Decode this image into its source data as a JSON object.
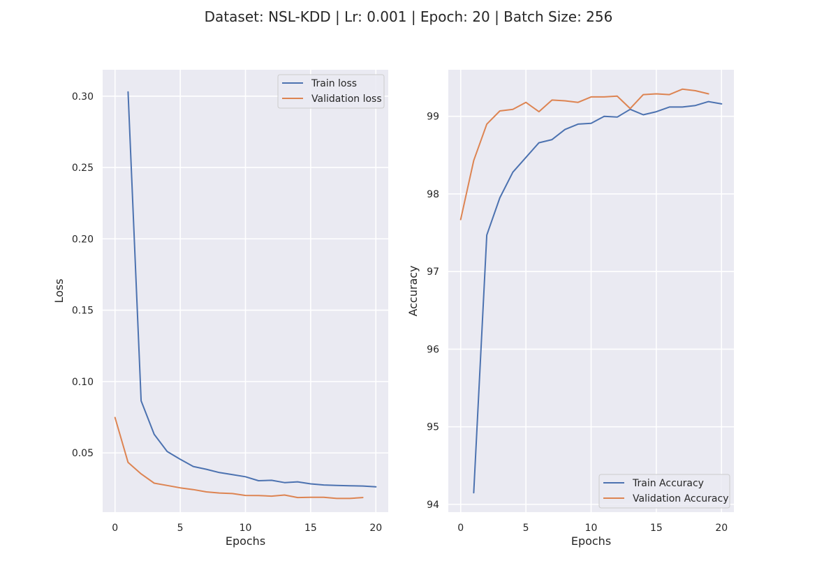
{
  "figure_title": "Dataset: NSL-KDD | Lr: 0.001 | Epoch: 20 | Batch Size: 256",
  "colors": {
    "background": "#eaeaf2",
    "grid": "#ffffff",
    "series_1": "#4c72b0",
    "series_2": "#dd8452"
  },
  "chart_data": [
    {
      "type": "line",
      "title": "",
      "xlabel": "Epochs",
      "ylabel": "Loss",
      "xlim": [
        -0.95,
        20.95
      ],
      "ylim": [
        0.0085,
        0.3185
      ],
      "xticks": [
        0,
        5,
        10,
        15,
        20
      ],
      "yticks": [
        0.05,
        0.1,
        0.15,
        0.2,
        0.25,
        0.3
      ],
      "ytick_labels": [
        "0.05",
        "0.10",
        "0.15",
        "0.20",
        "0.25",
        "0.30"
      ],
      "grid": true,
      "legend_position": "upper right",
      "series": [
        {
          "name": "Train loss",
          "x": [
            1,
            2,
            3,
            4,
            5,
            6,
            7,
            8,
            9,
            10,
            11,
            12,
            13,
            14,
            15,
            16,
            17,
            18,
            19,
            20
          ],
          "values": [
            0.303,
            0.0865,
            0.063,
            0.051,
            0.0455,
            0.0405,
            0.0385,
            0.0362,
            0.0348,
            0.0333,
            0.0305,
            0.0308,
            0.0292,
            0.0297,
            0.0283,
            0.0275,
            0.0272,
            0.027,
            0.0268,
            0.0262
          ]
        },
        {
          "name": "Validation loss",
          "x": [
            0,
            1,
            2,
            3,
            4,
            5,
            6,
            7,
            8,
            9,
            10,
            11,
            12,
            13,
            14,
            15,
            16,
            17,
            18,
            19
          ],
          "values": [
            0.0748,
            0.0433,
            0.0353,
            0.0288,
            0.0272,
            0.0255,
            0.0243,
            0.0227,
            0.0219,
            0.0215,
            0.0202,
            0.0201,
            0.0197,
            0.0205,
            0.0187,
            0.0189,
            0.0189,
            0.0181,
            0.0181,
            0.0187
          ]
        }
      ]
    },
    {
      "type": "line",
      "title": "",
      "xlabel": "Epochs",
      "ylabel": "Accuracy",
      "xlim": [
        -0.95,
        20.95
      ],
      "ylim": [
        93.9,
        99.6
      ],
      "xticks": [
        0,
        5,
        10,
        15,
        20
      ],
      "yticks": [
        94,
        95,
        96,
        97,
        98,
        99
      ],
      "ytick_labels": [
        "94",
        "95",
        "96",
        "97",
        "98",
        "99"
      ],
      "grid": true,
      "legend_position": "lower right",
      "series": [
        {
          "name": "Train Accuracy",
          "x": [
            1,
            2,
            3,
            4,
            5,
            6,
            7,
            8,
            9,
            10,
            11,
            12,
            13,
            14,
            15,
            16,
            17,
            18,
            19,
            20
          ],
          "values": [
            94.15,
            97.47,
            97.95,
            98.28,
            98.47,
            98.66,
            98.7,
            98.83,
            98.9,
            98.91,
            99.0,
            98.99,
            99.09,
            99.02,
            99.06,
            99.12,
            99.12,
            99.14,
            99.19,
            99.16
          ]
        },
        {
          "name": "Validation Accuracy",
          "x": [
            0,
            1,
            2,
            3,
            4,
            5,
            6,
            7,
            8,
            9,
            10,
            11,
            12,
            13,
            14,
            15,
            16,
            17,
            18,
            19
          ],
          "values": [
            97.67,
            98.43,
            98.9,
            99.07,
            99.09,
            99.18,
            99.06,
            99.21,
            99.2,
            99.18,
            99.25,
            99.25,
            99.26,
            99.1,
            99.28,
            99.29,
            99.28,
            99.35,
            99.33,
            99.29
          ]
        }
      ]
    }
  ]
}
